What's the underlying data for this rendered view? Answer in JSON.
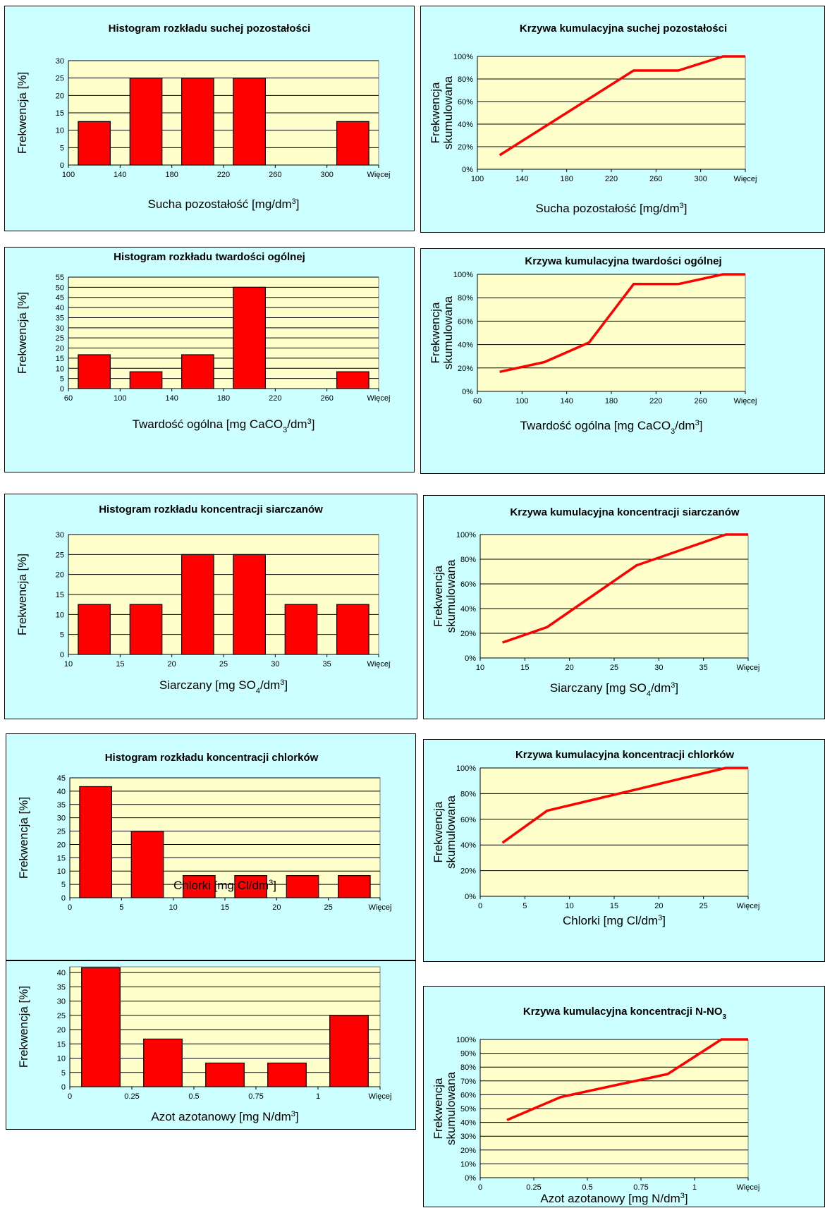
{
  "chart_data": [
    {
      "id": "h1",
      "type": "bar",
      "title": "Histogram rozkładu suchej pozostałości",
      "xlabel": "Sucha pozostałość [mg/dm",
      "xlabel_sup": "3",
      "xlabel_after": "]",
      "ylabel": "Frekwencja [%]",
      "xticks": [
        "100",
        "140",
        "180",
        "220",
        "260",
        "300",
        "Więcej"
      ],
      "yticks": [
        "0",
        "5",
        "10",
        "15",
        "20",
        "25",
        "30"
      ],
      "ylim": [
        0,
        30
      ],
      "values": [
        12.5,
        25,
        25,
        25,
        0,
        12.5
      ],
      "grid": true
    },
    {
      "id": "c1",
      "type": "line",
      "title": "Krzywa kumulacyjna suchej pozostałości",
      "xlabel": "Sucha pozostałość [mg/dm",
      "xlabel_sup": "3",
      "xlabel_after": "]",
      "ylabel": [
        "Frekwencja",
        "skumulowana"
      ],
      "xticks": [
        "100",
        "140",
        "180",
        "220",
        "260",
        "300",
        "Więcej"
      ],
      "yticks": [
        "0%",
        "20%",
        "40%",
        "60%",
        "80%",
        "100%"
      ],
      "ylim": [
        0,
        100
      ],
      "values": [
        12.5,
        37.5,
        62.5,
        87.5,
        87.5,
        100,
        100
      ],
      "grid": true
    },
    {
      "id": "h2",
      "type": "bar",
      "title": "Histogram rozkładu twardości ogólnej",
      "xlabel": "Twardość ogólna [mg CaCO",
      "xlabel_sub": "3",
      "xlabel_mid": "/dm",
      "xlabel_sup": "3",
      "xlabel_after": "]",
      "ylabel": "Frekwencja [%]",
      "xticks": [
        "60",
        "100",
        "140",
        "180",
        "220",
        "260",
        "Więcej"
      ],
      "yticks": [
        "0",
        "5",
        "10",
        "15",
        "20",
        "25",
        "30",
        "35",
        "40",
        "45",
        "50",
        "55"
      ],
      "ylim": [
        0,
        55
      ],
      "values": [
        16.7,
        8.3,
        16.7,
        50,
        0,
        8.3
      ],
      "grid": true
    },
    {
      "id": "c2",
      "type": "line",
      "title": "Krzywa kumulacyjna twardości ogólnej",
      "xlabel": "Twardość ogólna [mg CaCO",
      "xlabel_sub": "3",
      "xlabel_mid": "/dm",
      "xlabel_sup": "3",
      "xlabel_after": "]",
      "ylabel": [
        "Frekwencja",
        "skumulowana"
      ],
      "xticks": [
        "60",
        "100",
        "140",
        "180",
        "220",
        "260",
        "Więcej"
      ],
      "yticks": [
        "0%",
        "20%",
        "40%",
        "60%",
        "80%",
        "100%"
      ],
      "ylim": [
        0,
        100
      ],
      "values": [
        16.7,
        25,
        41.7,
        91.7,
        91.7,
        100,
        100
      ],
      "grid": true
    },
    {
      "id": "h3",
      "type": "bar",
      "title": "Histogram rozkładu koncentracji siarczanów",
      "xlabel": "Siarczany [mg SO",
      "xlabel_sub": "4",
      "xlabel_mid": "/dm",
      "xlabel_sup": "3",
      "xlabel_after": "]",
      "ylabel": "Frekwencja [%]",
      "xticks": [
        "10",
        "15",
        "20",
        "25",
        "30",
        "35",
        "Więcej"
      ],
      "yticks": [
        "0",
        "5",
        "10",
        "15",
        "20",
        "25",
        "30"
      ],
      "ylim": [
        0,
        30
      ],
      "values": [
        12.5,
        12.5,
        25,
        25,
        12.5,
        12.5
      ],
      "grid": true
    },
    {
      "id": "c3",
      "type": "line",
      "title": "Krzywa kumulacyjna koncentracji siarczanów",
      "xlabel": "Siarczany [mg SO",
      "xlabel_sub": "4",
      "xlabel_mid": "/dm",
      "xlabel_sup": "3",
      "xlabel_after": "]",
      "ylabel": [
        "Frekwencja",
        "skumulowana"
      ],
      "xticks": [
        "10",
        "15",
        "20",
        "25",
        "30",
        "35",
        "Więcej"
      ],
      "yticks": [
        "0%",
        "20%",
        "40%",
        "60%",
        "80%",
        "100%"
      ],
      "ylim": [
        0,
        100
      ],
      "values": [
        12.5,
        25,
        50,
        75,
        87.5,
        100,
        100
      ],
      "grid": true
    },
    {
      "id": "h4",
      "type": "bar",
      "title": "Histogram rozkładu koncentracji chlorków",
      "xlabel": "Chlorki [mg Cl/dm",
      "xlabel_sup": "3",
      "xlabel_after": "]",
      "ylabel": "Frekwencja [%]",
      "xticks": [
        "0",
        "5",
        "10",
        "15",
        "20",
        "25",
        "Więcej"
      ],
      "yticks": [
        "0",
        "5",
        "10",
        "15",
        "20",
        "25",
        "30",
        "35",
        "40",
        "45"
      ],
      "ylim": [
        0,
        45
      ],
      "values": [
        41.7,
        25,
        8.3,
        8.3,
        8.3,
        8.3
      ],
      "grid": true
    },
    {
      "id": "c4",
      "type": "line",
      "title": "Krzywa kumulacyjna koncentracji chlorków",
      "xlabel": "Chlorki [mg Cl/dm",
      "xlabel_sup": "3",
      "xlabel_after": "]",
      "ylabel": [
        "Frekwencja",
        "skumulowana"
      ],
      "xticks": [
        "0",
        "5",
        "10",
        "15",
        "20",
        "25",
        "Więcej"
      ],
      "yticks": [
        "0%",
        "20%",
        "40%",
        "60%",
        "80%",
        "100%"
      ],
      "ylim": [
        0,
        100
      ],
      "values": [
        41.7,
        66.7,
        75,
        83.3,
        91.7,
        100,
        100
      ],
      "grid": true
    },
    {
      "id": "h5",
      "type": "bar",
      "title": "",
      "xlabel": "Azot azotanowy [mg N/dm",
      "xlabel_sup": "3",
      "xlabel_after": "]",
      "ylabel": "Frekwencja [%]",
      "xticks": [
        "0",
        "0.25",
        "0.5",
        "0.75",
        "1",
        "Więcej"
      ],
      "yticks": [
        "0",
        "5",
        "10",
        "15",
        "20",
        "25",
        "30",
        "35",
        "40"
      ],
      "ylim": [
        0,
        42
      ],
      "values": [
        41.7,
        16.7,
        8.3,
        8.3,
        25
      ],
      "grid": true
    },
    {
      "id": "c5",
      "type": "line",
      "title": "Krzywa kumulacyjna koncentracji N-NO",
      "title_sub": "3",
      "xlabel": "Azot azotanowy [mg N/dm",
      "xlabel_sup": "3",
      "xlabel_after": "]",
      "ylabel": [
        "Frekwencja",
        "skumulowana"
      ],
      "xticks": [
        "0",
        "0.25",
        "0.5",
        "0.75",
        "1",
        "Więcej"
      ],
      "yticks": [
        "0%",
        "10%",
        "20%",
        "30%",
        "40%",
        "50%",
        "60%",
        "70%",
        "80%",
        "90%",
        "100%"
      ],
      "ylim": [
        0,
        100
      ],
      "values": [
        41.7,
        58.3,
        66.7,
        75,
        100,
        100
      ],
      "grid": true
    }
  ],
  "colors": {
    "panel_bg": "#ccffff",
    "plot_bg": "#ffffcc",
    "series": "#ff0000",
    "grid": "#000000"
  }
}
